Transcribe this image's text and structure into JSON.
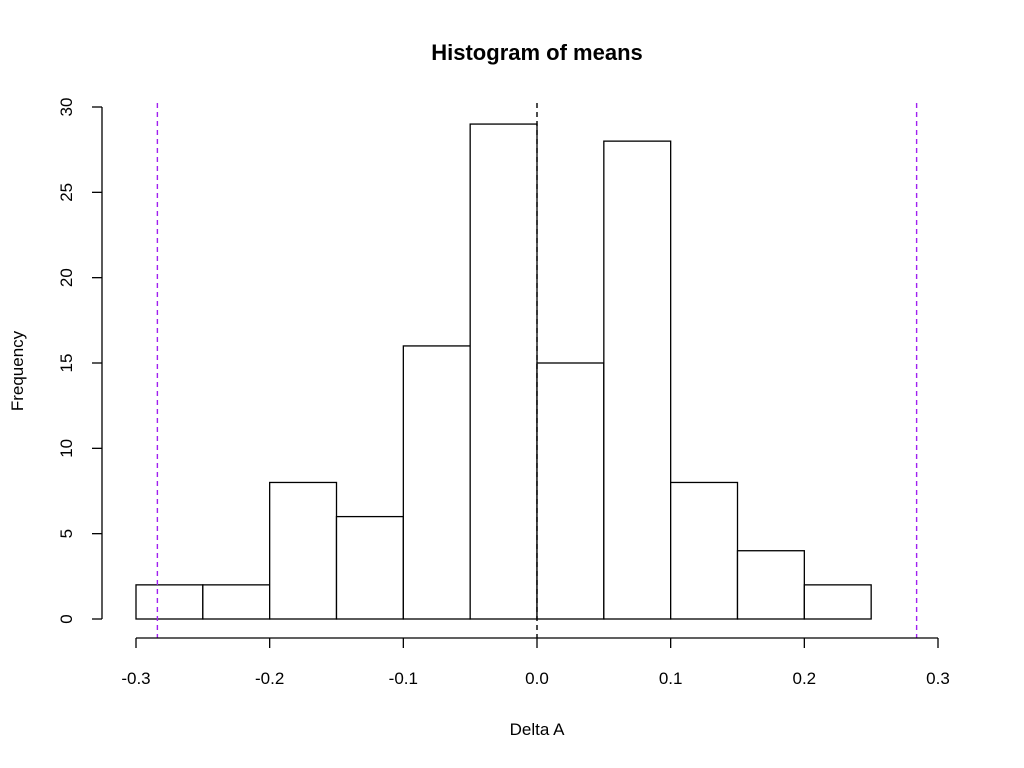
{
  "chart_data": {
    "type": "bar",
    "subtype": "histogram",
    "title": "Histogram of means",
    "xlabel": "Delta A",
    "ylabel": "Frequency",
    "xlim": [
      -0.3,
      0.3
    ],
    "ylim": [
      0,
      30
    ],
    "x_ticks": [
      "-0.3",
      "-0.2",
      "-0.1",
      "0.0",
      "0.1",
      "0.2",
      "0.3"
    ],
    "y_ticks": [
      "0",
      "5",
      "10",
      "15",
      "20",
      "25",
      "30"
    ],
    "bins": [
      {
        "start": -0.3,
        "end": -0.25,
        "count": 2
      },
      {
        "start": -0.25,
        "end": -0.2,
        "count": 2
      },
      {
        "start": -0.2,
        "end": -0.15,
        "count": 8
      },
      {
        "start": -0.15,
        "end": -0.1,
        "count": 6
      },
      {
        "start": -0.1,
        "end": -0.05,
        "count": 16
      },
      {
        "start": -0.05,
        "end": 0.0,
        "count": 29
      },
      {
        "start": 0.0,
        "end": 0.05,
        "count": 15
      },
      {
        "start": 0.05,
        "end": 0.1,
        "count": 28
      },
      {
        "start": 0.1,
        "end": 0.15,
        "count": 8
      },
      {
        "start": 0.15,
        "end": 0.2,
        "count": 4
      },
      {
        "start": 0.2,
        "end": 0.25,
        "count": 2
      }
    ],
    "reference_lines": [
      {
        "x": -0.284,
        "color": "#a020f0",
        "style": "dashed"
      },
      {
        "x": 0.0,
        "color": "#000000",
        "style": "dashed"
      },
      {
        "x": 0.284,
        "color": "#a020f0",
        "style": "dashed"
      }
    ],
    "bar_fill": "#ffffff",
    "bar_stroke": "#000000",
    "grid": false
  }
}
